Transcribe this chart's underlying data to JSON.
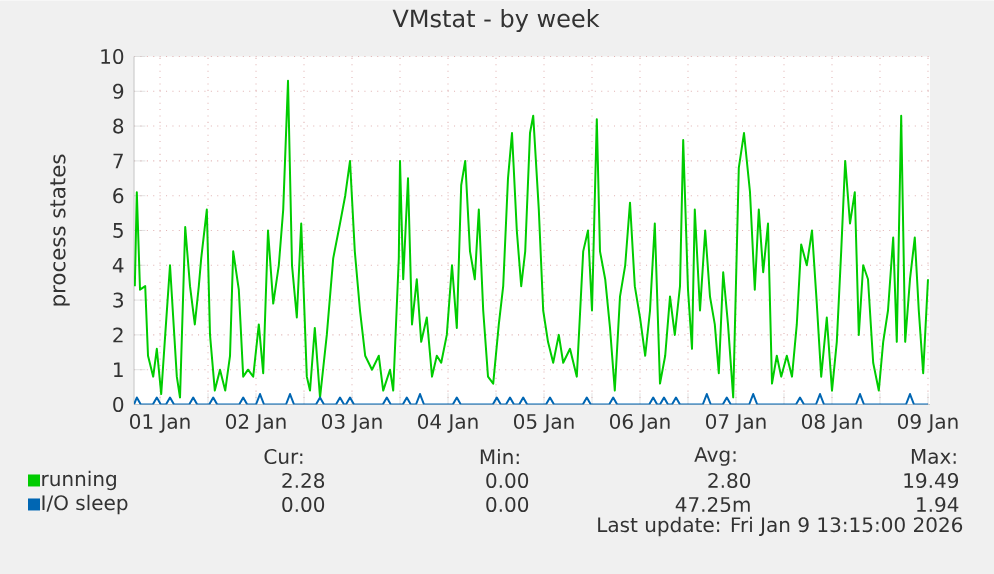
{
  "chart_data": {
    "type": "line",
    "title": "VMstat - by week",
    "ylabel": "process states",
    "xlim": [
      "2026-01-01T05:30",
      "2026-01-09T12:30"
    ],
    "xticks": [
      {
        "value": "2026-01-01T12:00",
        "label": "01 Jan"
      },
      {
        "value": "2026-01-02",
        "label": null
      },
      {
        "value": "2026-01-02T12:00",
        "label": "02 Jan"
      },
      {
        "value": "2026-01-03",
        "label": null
      },
      {
        "value": "2026-01-03T12:00",
        "label": "03 Jan"
      },
      {
        "value": "2026-01-04",
        "label": null
      },
      {
        "value": "2026-01-04T12:00",
        "label": "04 Jan"
      },
      {
        "value": "2026-01-05",
        "label": null
      },
      {
        "value": "2026-01-05T12:00",
        "label": "05 Jan"
      },
      {
        "value": "2026-01-06",
        "label": null
      },
      {
        "value": "2026-01-06T12:00",
        "label": "06 Jan"
      },
      {
        "value": "2026-01-07",
        "label": null
      },
      {
        "value": "2026-01-07T12:00",
        "label": "07 Jan"
      },
      {
        "value": "2026-01-08",
        "label": null
      },
      {
        "value": "2026-01-08T12:00",
        "label": "08 Jan"
      },
      {
        "value": "2026-01-09",
        "label": null
      },
      {
        "value": "2026-01-09T12:00",
        "label": "09 Jan"
      }
    ],
    "ylim": [
      0,
      10
    ],
    "yticks": [
      0,
      1,
      2,
      3,
      4,
      5,
      6,
      7,
      8,
      9,
      10
    ],
    "grid": true,
    "legend": "bottom",
    "series": [
      {
        "name": "running",
        "color": "#00cc00",
        "x": [
          "2026-01-01T05:42",
          "2026-01-01T06:12",
          "2026-01-01T07:00",
          "2026-01-01T08:18",
          "2026-01-01T09:00",
          "2026-01-01T10:18",
          "2026-01-01T11:12",
          "2026-01-01T12:18",
          "2026-01-01T13:18",
          "2026-01-01T14:30",
          "2026-01-01T16:12",
          "2026-01-01T17:00",
          "2026-01-01T18:18",
          "2026-01-01T19:30",
          "2026-01-01T20:42",
          "2026-01-01T21:42",
          "2026-01-01T22:18",
          "2026-01-01T23:42",
          "2026-01-02T00:30",
          "2026-01-02T01:42",
          "2026-01-02T03:00",
          "2026-01-02T04:18",
          "2026-01-02T05:30",
          "2026-01-02T06:18",
          "2026-01-02T07:42",
          "2026-01-02T08:48",
          "2026-01-02T10:00",
          "2026-01-02T11:18",
          "2026-01-02T12:42",
          "2026-01-02T13:48",
          "2026-01-02T15:00",
          "2026-01-02T16:18",
          "2026-01-02T17:42",
          "2026-01-02T18:48",
          "2026-01-02T20:00",
          "2026-01-02T21:00",
          "2026-01-02T22:12",
          "2026-01-02T23:18",
          "2026-01-03T00:42",
          "2026-01-03T01:30",
          "2026-01-03T02:42",
          "2026-01-03T04:00",
          "2026-01-03T05:42",
          "2026-01-03T07:18",
          "2026-01-03T09:00",
          "2026-01-03T10:18",
          "2026-01-03T11:30",
          "2026-01-03T12:42",
          "2026-01-03T14:00",
          "2026-01-03T15:18",
          "2026-01-03T17:00",
          "2026-01-03T18:42",
          "2026-01-03T19:48",
          "2026-01-03T21:30",
          "2026-01-03T22:18",
          "2026-01-03T23:42",
          "2026-01-04T00:00",
          "2026-01-04T00:48",
          "2026-01-04T02:00",
          "2026-01-04T03:00",
          "2026-01-04T04:12",
          "2026-01-04T05:18",
          "2026-01-04T06:42",
          "2026-01-04T08:00",
          "2026-01-04T09:12",
          "2026-01-04T10:18",
          "2026-01-04T11:42",
          "2026-01-04T13:00",
          "2026-01-04T14:12",
          "2026-01-04T15:18",
          "2026-01-04T16:18",
          "2026-01-04T17:30",
          "2026-01-04T18:42",
          "2026-01-04T19:42",
          "2026-01-04T20:48",
          "2026-01-04T22:00",
          "2026-01-04T23:18",
          "2026-01-05T00:42",
          "2026-01-05T01:48",
          "2026-01-05T03:00",
          "2026-01-05T04:00",
          "2026-01-05T05:12",
          "2026-01-05T06:18",
          "2026-01-05T07:18",
          "2026-01-05T08:30",
          "2026-01-05T09:18",
          "2026-01-05T10:42",
          "2026-01-05T11:48",
          "2026-01-05T13:00",
          "2026-01-05T14:18",
          "2026-01-05T15:42",
          "2026-01-05T16:48",
          "2026-01-05T18:30",
          "2026-01-05T20:12",
          "2026-01-05T21:48",
          "2026-01-05T23:00",
          "2026-01-06T00:00",
          "2026-01-06T01:12",
          "2026-01-06T02:00",
          "2026-01-06T03:18",
          "2026-01-06T04:30",
          "2026-01-06T05:42",
          "2026-01-06T07:00",
          "2026-01-06T08:18",
          "2026-01-06T09:30",
          "2026-01-06T10:42",
          "2026-01-06T12:00",
          "2026-01-06T13:18",
          "2026-01-06T14:30",
          "2026-01-06T15:42",
          "2026-01-06T17:00",
          "2026-01-06T18:18",
          "2026-01-06T19:30",
          "2026-01-06T20:42",
          "2026-01-06T22:00",
          "2026-01-06T22:48",
          "2026-01-07T00:00",
          "2026-01-07T01:00",
          "2026-01-07T01:42",
          "2026-01-07T03:00",
          "2026-01-07T04:18",
          "2026-01-07T05:30",
          "2026-01-07T06:42",
          "2026-01-07T07:42",
          "2026-01-07T08:48",
          "2026-01-07T10:00",
          "2026-01-07T11:18",
          "2026-01-07T12:42",
          "2026-01-07T14:00",
          "2026-01-07T15:30",
          "2026-01-07T16:42",
          "2026-01-07T17:42",
          "2026-01-07T18:48",
          "2026-01-07T20:00",
          "2026-01-07T21:00",
          "2026-01-07T22:12",
          "2026-01-07T23:18",
          "2026-01-08T00:42",
          "2026-01-08T02:00",
          "2026-01-08T03:12",
          "2026-01-08T04:18",
          "2026-01-08T05:42",
          "2026-01-08T07:00",
          "2026-01-08T08:12",
          "2026-01-08T09:18",
          "2026-01-08T10:42",
          "2026-01-08T12:00",
          "2026-01-08T13:12",
          "2026-01-08T14:18",
          "2026-01-08T15:18",
          "2026-01-08T16:30",
          "2026-01-08T17:42",
          "2026-01-08T18:42",
          "2026-01-08T19:48",
          "2026-01-08T21:00",
          "2026-01-08T22:18",
          "2026-01-08T23:42",
          "2026-01-09T00:48",
          "2026-01-09T02:00",
          "2026-01-09T03:18",
          "2026-01-09T04:12",
          "2026-01-09T05:18",
          "2026-01-09T06:18",
          "2026-01-09T07:30",
          "2026-01-09T08:42",
          "2026-01-09T09:42",
          "2026-01-09T10:48",
          "2026-01-09T12:00"
        ],
        "values": [
          3.4,
          6.1,
          3.3,
          3.4,
          1.4,
          0.8,
          1.6,
          0.3,
          2.0,
          4.0,
          0.8,
          0.2,
          5.1,
          3.4,
          2.3,
          3.4,
          4.2,
          5.6,
          2.0,
          0.4,
          1.0,
          0.4,
          1.4,
          4.4,
          3.3,
          0.8,
          1.0,
          0.8,
          2.3,
          0.9,
          5.0,
          2.9,
          4.0,
          5.6,
          9.3,
          4.0,
          2.5,
          5.2,
          0.8,
          0.4,
          2.2,
          0.2,
          2.0,
          4.2,
          5.2,
          6.0,
          7.0,
          4.4,
          2.7,
          1.4,
          1.0,
          1.4,
          0.4,
          1.0,
          0.4,
          4.2,
          7.0,
          3.6,
          6.5,
          2.3,
          3.6,
          1.8,
          2.5,
          0.8,
          1.4,
          1.2,
          2.0,
          4.0,
          2.2,
          6.3,
          7.0,
          4.4,
          3.6,
          5.6,
          2.7,
          0.8,
          0.6,
          2.3,
          3.4,
          6.5,
          7.8,
          5.0,
          3.4,
          4.4,
          7.8,
          8.3,
          5.6,
          2.7,
          1.8,
          1.2,
          2.0,
          1.2,
          1.6,
          0.8,
          4.4,
          5.0,
          2.7,
          8.2,
          4.4,
          3.6,
          2.2,
          0.4,
          3.1,
          4.0,
          5.8,
          3.4,
          2.5,
          1.4,
          2.7,
          5.2,
          0.6,
          1.4,
          3.1,
          2.0,
          3.4,
          7.6,
          3.3,
          1.6,
          5.6,
          2.7,
          5.0,
          3.1,
          2.3,
          0.9,
          3.8,
          2.3,
          0.2,
          6.8,
          7.8,
          6.1,
          3.3,
          5.6,
          3.8,
          5.2,
          0.6,
          1.4,
          0.8,
          1.4,
          0.8,
          2.3,
          4.6,
          4.0,
          5.0,
          2.9,
          0.8,
          2.5,
          0.4,
          1.8,
          4.4,
          7.0,
          5.2,
          6.1,
          2.0,
          4.0,
          3.6,
          1.2,
          0.4,
          1.8,
          2.7,
          4.8,
          1.8,
          8.3,
          1.8,
          3.6,
          4.8,
          2.7,
          0.9,
          3.6
        ]
      },
      {
        "name": "I/O sleep",
        "color": "#0066b3",
        "x": [
          "2026-01-01T05:30",
          "2026-01-01T06:12",
          "2026-01-01T07:12",
          "2026-01-01T10:12",
          "2026-01-01T11:12",
          "2026-01-01T12:12",
          "2026-01-01T13:30",
          "2026-01-01T14:30",
          "2026-01-01T15:30",
          "2026-01-01T19:18",
          "2026-01-01T20:18",
          "2026-01-01T21:18",
          "2026-01-02T00:18",
          "2026-01-02T01:18",
          "2026-01-02T02:18",
          "2026-01-02T07:48",
          "2026-01-02T08:48",
          "2026-01-02T09:48",
          "2026-01-02T12:00",
          "2026-01-02T13:00",
          "2026-01-02T14:00",
          "2026-01-02T19:30",
          "2026-01-02T20:30",
          "2026-01-02T21:30",
          "2026-01-03T03:00",
          "2026-01-03T04:00",
          "2026-01-03T05:00",
          "2026-01-03T08:00",
          "2026-01-03T09:00",
          "2026-01-03T10:00",
          "2026-01-03T10:30",
          "2026-01-03T11:30",
          "2026-01-03T12:30",
          "2026-01-03T19:42",
          "2026-01-03T20:42",
          "2026-01-03T21:42",
          "2026-01-04T00:42",
          "2026-01-04T01:42",
          "2026-01-04T02:42",
          "2026-01-04T04:00",
          "2026-01-04T05:00",
          "2026-01-04T06:00",
          "2026-01-04T13:12",
          "2026-01-04T14:12",
          "2026-01-04T15:12",
          "2026-01-04T23:12",
          "2026-01-05T00:12",
          "2026-01-05T01:12",
          "2026-01-05T02:30",
          "2026-01-05T03:30",
          "2026-01-05T04:30",
          "2026-01-05T05:48",
          "2026-01-05T06:48",
          "2026-01-05T07:48",
          "2026-01-05T12:30",
          "2026-01-05T13:30",
          "2026-01-05T14:30",
          "2026-01-05T21:42",
          "2026-01-05T22:42",
          "2026-01-05T23:42",
          "2026-01-06T04:18",
          "2026-01-06T05:18",
          "2026-01-06T06:18",
          "2026-01-06T14:18",
          "2026-01-06T15:18",
          "2026-01-06T16:18",
          "2026-01-06T17:00",
          "2026-01-06T18:00",
          "2026-01-06T19:00",
          "2026-01-06T20:00",
          "2026-01-06T21:00",
          "2026-01-06T22:00",
          "2026-01-07T03:42",
          "2026-01-07T04:42",
          "2026-01-07T05:42",
          "2026-01-07T08:42",
          "2026-01-07T09:42",
          "2026-01-07T10:42",
          "2026-01-07T15:18",
          "2026-01-07T16:18",
          "2026-01-07T17:18",
          "2026-01-08T03:00",
          "2026-01-08T04:00",
          "2026-01-08T05:00",
          "2026-01-08T08:00",
          "2026-01-08T09:00",
          "2026-01-08T10:00",
          "2026-01-08T18:00",
          "2026-01-08T19:00",
          "2026-01-08T20:00",
          "2026-01-09T06:30",
          "2026-01-09T07:30",
          "2026-01-09T08:30",
          "2026-01-09T12:00"
        ],
        "values": [
          0,
          0.2,
          0,
          0,
          0.2,
          0,
          0,
          0.2,
          0,
          0,
          0.2,
          0,
          0,
          0.2,
          0,
          0,
          0.2,
          0,
          0,
          0.3,
          0,
          0,
          0.3,
          0,
          0,
          0.2,
          0,
          0,
          0.2,
          0,
          0,
          0.2,
          0,
          0,
          0.2,
          0,
          0,
          0.2,
          0,
          0,
          0.3,
          0,
          0,
          0.2,
          0,
          0,
          0.2,
          0,
          0,
          0.2,
          0,
          0,
          0.2,
          0,
          0,
          0.2,
          0,
          0,
          0.2,
          0,
          0,
          0.2,
          0,
          0,
          0.2,
          0,
          0,
          0.2,
          0,
          0,
          0.2,
          0,
          0,
          0.3,
          0,
          0,
          0.2,
          0,
          0,
          0.3,
          0,
          0,
          0.2,
          0,
          0,
          0.3,
          0,
          0,
          0.3,
          0,
          0,
          0.3,
          0,
          0
        ]
      }
    ],
    "annotations": [
      "Cur:",
      "Min:",
      "Avg:",
      "Max:",
      "2.28",
      "0.00",
      "2.80",
      "19.49",
      "0.00",
      "0.00",
      "47.25m",
      "1.94",
      "Last update: Fri Jan  9 13:15:00 2026"
    ]
  }
}
